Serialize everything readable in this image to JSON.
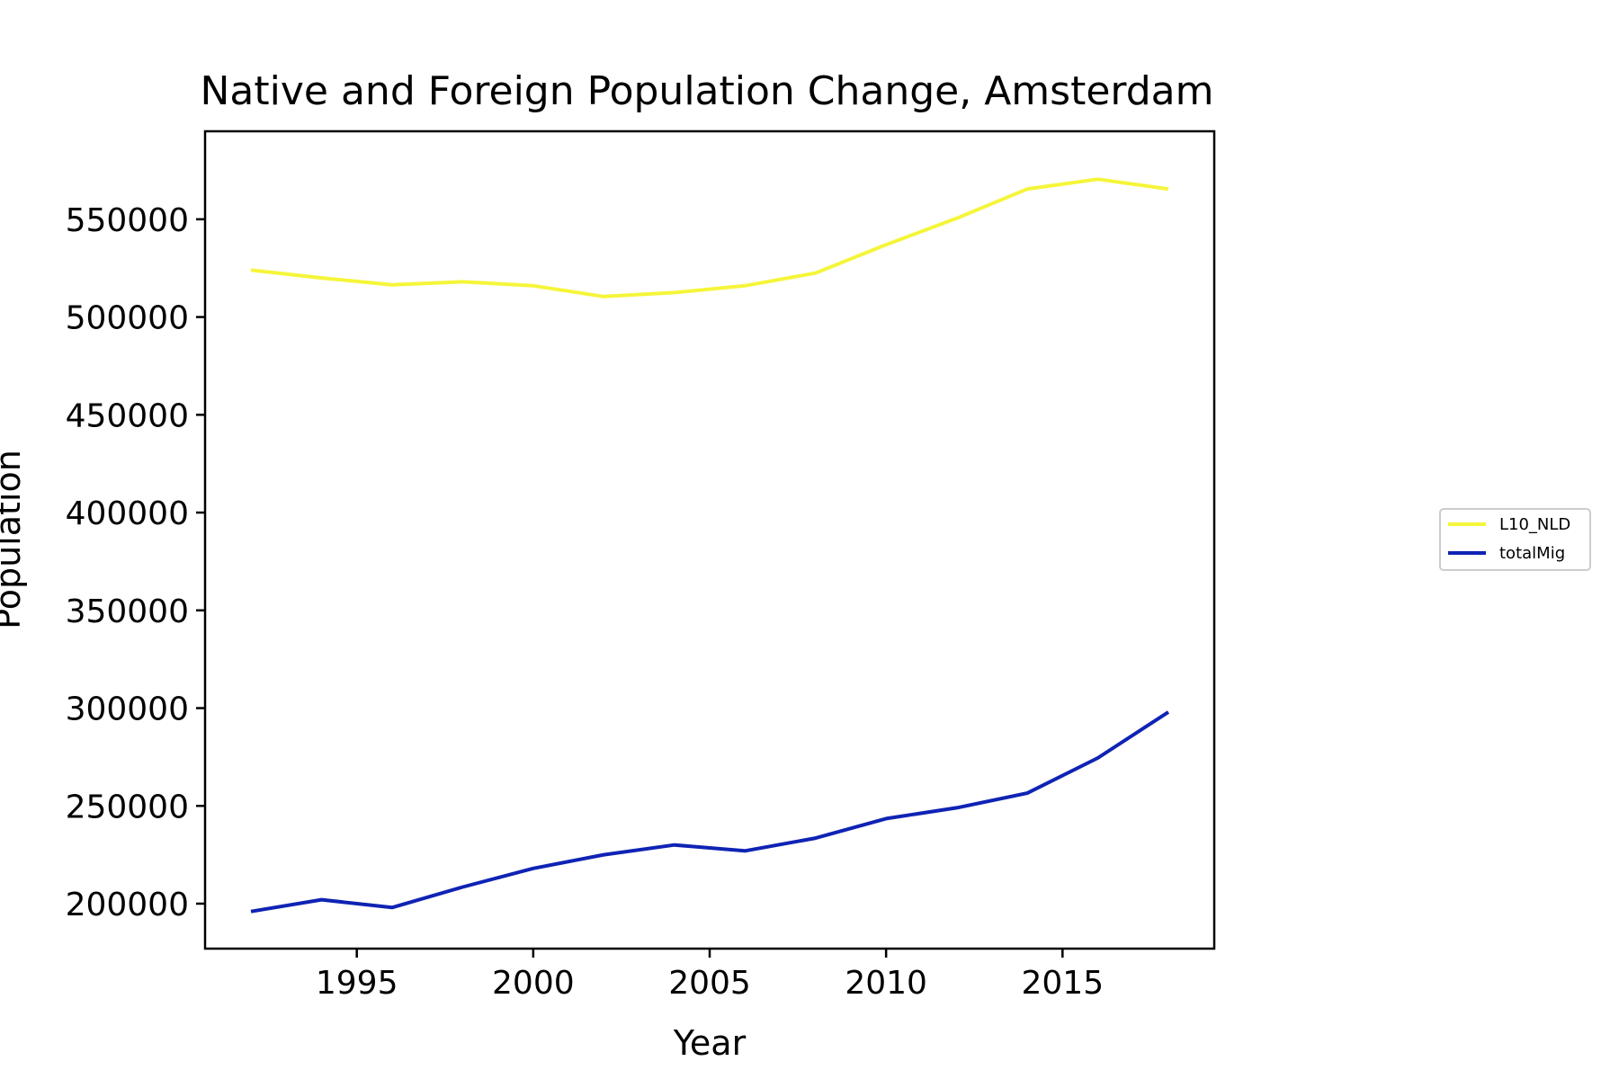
{
  "chart_data": {
    "type": "line",
    "title": "Native and Foreign Population Change, Amsterdam",
    "xlabel": "Year",
    "ylabel": "Population",
    "x": [
      1992,
      1994,
      1996,
      1998,
      2000,
      2002,
      2004,
      2006,
      2008,
      2010,
      2012,
      2014,
      2016,
      2018
    ],
    "xlim": [
      1990.7,
      2019.3
    ],
    "ylim": [
      177000,
      595000
    ],
    "xticks": [
      1995,
      2000,
      2005,
      2010,
      2015
    ],
    "yticks": [
      200000,
      250000,
      300000,
      350000,
      400000,
      450000,
      500000,
      550000
    ],
    "grid": false,
    "legend_position": "center-right",
    "series": [
      {
        "name": "L10_NLD",
        "color": "#f5f53a",
        "values": [
          524000,
          520000,
          516500,
          518000,
          516000,
          510500,
          512500,
          516000,
          522500,
          537000,
          550500,
          565500,
          570500,
          565500
        ]
      },
      {
        "name": "totalMig",
        "color": "#0f23b4",
        "values": [
          196000,
          202000,
          198000,
          208500,
          218000,
          225000,
          230000,
          227000,
          233500,
          243500,
          249000,
          256500,
          274500,
          298000
        ]
      }
    ]
  }
}
